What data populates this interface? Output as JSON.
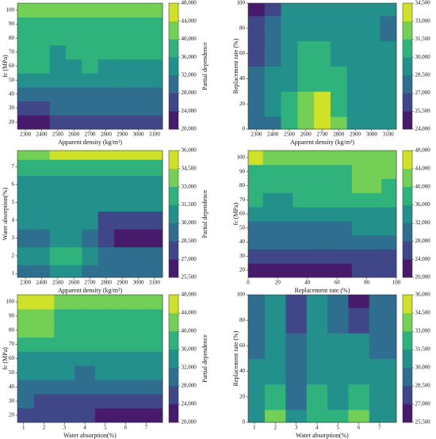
{
  "chart_data": [
    {
      "type": "contour",
      "colormap": "viridis",
      "x_label": "Apparent density (kg/m³)",
      "y_label": "fc (MPa)",
      "colorbar_label": "Partial dependence",
      "x": [
        2300,
        2400,
        2500,
        2600,
        2700,
        2800,
        2900,
        3000,
        3100
      ],
      "y": [
        20,
        30,
        40,
        50,
        60,
        70,
        80,
        90,
        100
      ],
      "z": [
        [
          22000,
          23000,
          25000,
          25000,
          25000,
          25000,
          26000,
          26000,
          26000
        ],
        [
          26000,
          27000,
          28000,
          28000,
          28000,
          28000,
          28000,
          29000,
          29000
        ],
        [
          30000,
          30000,
          30000,
          30000,
          30000,
          31000,
          31000,
          31000,
          31000
        ],
        [
          32000,
          33000,
          32000,
          32000,
          33000,
          33000,
          33000,
          33000,
          33000
        ],
        [
          36000,
          37000,
          35000,
          33000,
          36000,
          35000,
          35000,
          35000,
          35000
        ],
        [
          37000,
          38000,
          35000,
          37000,
          37000,
          37000,
          37000,
          37000,
          37000
        ],
        [
          38000,
          38000,
          38000,
          38000,
          38000,
          38000,
          38000,
          38000,
          38000
        ],
        [
          38000,
          38000,
          38000,
          38000,
          38000,
          38000,
          38000,
          38000,
          38000
        ],
        [
          41000,
          42000,
          42000,
          42000,
          42000,
          42000,
          42000,
          42000,
          42000
        ]
      ],
      "xlim": [
        2250,
        3150
      ],
      "ylim": [
        15,
        105
      ],
      "xticks": [
        2300,
        2400,
        2500,
        2600,
        2700,
        2800,
        2900,
        3000,
        3100
      ],
      "yticks": [
        20,
        30,
        40,
        50,
        60,
        70,
        80,
        90,
        100
      ],
      "clim": [
        20000,
        48000
      ],
      "cticks": [
        {
          "value": 20000,
          "label": "20,000"
        },
        {
          "value": 24000,
          "label": "24,000"
        },
        {
          "value": 28000,
          "label": "28,000"
        },
        {
          "value": 32000,
          "label": "32,000"
        },
        {
          "value": 36000,
          "label": "36,000"
        },
        {
          "value": 40000,
          "label": "40,000"
        },
        {
          "value": 44000,
          "label": "44,000"
        },
        {
          "value": 48000,
          "label": "48,000"
        }
      ]
    },
    {
      "type": "contour",
      "colormap": "viridis",
      "x_label": "Apparent density (kg/m³)",
      "y_label": "Replacement rate (%)",
      "colorbar_label": "Partial dependence",
      "x": [
        2300,
        2400,
        2500,
        2600,
        2700,
        2800,
        2900,
        3000,
        3100
      ],
      "y": [
        0,
        20,
        40,
        60,
        80,
        100
      ],
      "z": [
        [
          27000,
          28000,
          30000,
          32000,
          34000,
          31500,
          29000,
          28500,
          28500
        ],
        [
          27500,
          28500,
          30000,
          31500,
          33000,
          31000,
          29000,
          28500,
          28500
        ],
        [
          27000,
          28500,
          29500,
          30500,
          31000,
          30000,
          29000,
          28500,
          28500
        ],
        [
          26500,
          28000,
          29000,
          30000,
          30000,
          29500,
          29000,
          28500,
          28500
        ],
        [
          26000,
          27500,
          28500,
          29000,
          29000,
          29000,
          28500,
          28500,
          28000
        ],
        [
          25000,
          26500,
          28500,
          29000,
          29000,
          29000,
          28500,
          28500,
          28500
        ]
      ],
      "xlim": [
        2250,
        3150
      ],
      "ylim": [
        0,
        100
      ],
      "xticks": [
        2300,
        2400,
        2500,
        2600,
        2700,
        2800,
        2900,
        3000,
        3100
      ],
      "yticks": [
        0,
        20,
        40,
        60,
        80,
        100
      ],
      "clim": [
        24000,
        34500
      ],
      "cticks": [
        {
          "value": 24000,
          "label": "24,000"
        },
        {
          "value": 25500,
          "label": "25,500"
        },
        {
          "value": 27000,
          "label": "27,000"
        },
        {
          "value": 28500,
          "label": "28,500"
        },
        {
          "value": 30000,
          "label": "30,000"
        },
        {
          "value": 31500,
          "label": "31,500"
        },
        {
          "value": 33000,
          "label": "33,000"
        },
        {
          "value": 34500,
          "label": "34,500"
        }
      ]
    },
    {
      "type": "contour",
      "colormap": "viridis",
      "x_label": "Apparent density (kg/m³)",
      "y_label": "Water absorption(%)",
      "colorbar_label": "Partial dependence",
      "x": [
        2300,
        2400,
        2500,
        2600,
        2700,
        2800,
        2900,
        3000,
        3100
      ],
      "y": [
        1,
        2,
        3,
        4,
        5,
        6,
        7,
        7.8
      ],
      "z": [
        [
          29000,
          29500,
          30000,
          30000,
          29000,
          29000,
          29000,
          29000,
          29000
        ],
        [
          30000,
          30500,
          31500,
          32500,
          30000,
          28500,
          28500,
          28500,
          28500
        ],
        [
          29500,
          28500,
          30000,
          30500,
          29000,
          27000,
          26500,
          26500,
          26500
        ],
        [
          30000,
          30000,
          31000,
          31000,
          30000,
          28000,
          28000,
          28000,
          28000
        ],
        [
          30500,
          30500,
          31000,
          31000,
          30500,
          30000,
          30000,
          30000,
          30000
        ],
        [
          30500,
          30500,
          31000,
          31000,
          30500,
          30500,
          30500,
          30500,
          30500
        ],
        [
          31500,
          31500,
          31500,
          32000,
          32000,
          32000,
          32000,
          32000,
          32000
        ],
        [
          34000,
          34000,
          34500,
          35000,
          35500,
          35500,
          35500,
          35500,
          35500
        ]
      ],
      "xlim": [
        2250,
        3150
      ],
      "ylim": [
        0.8,
        7.9
      ],
      "xticks": [
        2300,
        2400,
        2500,
        2600,
        2700,
        2800,
        2900,
        3000,
        3100
      ],
      "yticks": [
        1,
        2,
        3,
        4,
        5,
        6,
        7
      ],
      "clim": [
        25500,
        36000
      ],
      "cticks": [
        {
          "value": 25500,
          "label": "25,500"
        },
        {
          "value": 27000,
          "label": "27,000"
        },
        {
          "value": 28500,
          "label": "28,500"
        },
        {
          "value": 30000,
          "label": "30,000"
        },
        {
          "value": 31500,
          "label": "31,500"
        },
        {
          "value": 33000,
          "label": "33,000"
        },
        {
          "value": 34500,
          "label": "34,500"
        },
        {
          "value": 36000,
          "label": "36,000"
        }
      ]
    },
    {
      "type": "contour",
      "colormap": "viridis",
      "x_label": "Replacement rate (%)",
      "y_label": "fc (MPa)",
      "colorbar_label": "Partial dependence",
      "x": [
        0,
        20,
        40,
        60,
        80,
        100
      ],
      "y": [
        20,
        30,
        40,
        50,
        60,
        70,
        80,
        90,
        100
      ],
      "z": [
        [
          22000,
          22000,
          23000,
          23000,
          24000,
          24000
        ],
        [
          26000,
          26000,
          26000,
          26000,
          27000,
          27000
        ],
        [
          29000,
          29000,
          29000,
          29000,
          30000,
          30000
        ],
        [
          31000,
          31000,
          31000,
          31000,
          32000,
          32000
        ],
        [
          34000,
          33000,
          34000,
          35000,
          35000,
          35000
        ],
        [
          36000,
          35000,
          36000,
          37000,
          38000,
          37000
        ],
        [
          38000,
          37000,
          37000,
          38000,
          40000,
          38000
        ],
        [
          39000,
          38000,
          38000,
          39000,
          40000,
          40000
        ],
        [
          45000,
          42000,
          41000,
          41000,
          41000,
          41000
        ]
      ],
      "xlim": [
        0,
        100
      ],
      "ylim": [
        15,
        105
      ],
      "xticks": [
        0,
        20,
        40,
        60,
        80,
        100
      ],
      "yticks": [
        20,
        30,
        40,
        50,
        60,
        70,
        80,
        90,
        100
      ],
      "clim": [
        20000,
        48000
      ],
      "cticks": [
        {
          "value": 20000,
          "label": "20,000"
        },
        {
          "value": 24000,
          "label": "24,000"
        },
        {
          "value": 28000,
          "label": "28,000"
        },
        {
          "value": 32000,
          "label": "32,000"
        },
        {
          "value": 36000,
          "label": "36,000"
        },
        {
          "value": 40000,
          "label": "40,000"
        },
        {
          "value": 44000,
          "label": "44,000"
        },
        {
          "value": 48000,
          "label": "48,000"
        }
      ]
    },
    {
      "type": "contour",
      "colormap": "viridis",
      "x_label": "Water absorption(%)",
      "y_label": "fc (MPa)",
      "colorbar_label": "Partial dependence",
      "x": [
        1,
        2,
        3,
        4,
        5,
        6,
        7
      ],
      "y": [
        20,
        30,
        40,
        50,
        60,
        70,
        80,
        90,
        100
      ],
      "z": [
        [
          26000,
          25000,
          26000,
          24000,
          22000,
          21000,
          22000
        ],
        [
          28000,
          27000,
          27000,
          26000,
          25000,
          25000,
          25000
        ],
        [
          30000,
          30000,
          30000,
          29000,
          29000,
          29000,
          29000
        ],
        [
          32000,
          32000,
          32000,
          31000,
          32000,
          32000,
          32000
        ],
        [
          34000,
          34000,
          35000,
          33000,
          34000,
          34000,
          34000
        ],
        [
          36000,
          37000,
          36000,
          36000,
          37000,
          37000,
          37000
        ],
        [
          40000,
          42000,
          37000,
          38000,
          38000,
          38000,
          38000
        ],
        [
          42000,
          43000,
          38000,
          38000,
          38000,
          38000,
          38000
        ],
        [
          44000,
          46000,
          42000,
          40000,
          40000,
          40000,
          40000
        ]
      ],
      "xlim": [
        0.7,
        7.8
      ],
      "ylim": [
        15,
        105
      ],
      "xticks": [
        1,
        2,
        3,
        4,
        5,
        6,
        7
      ],
      "yticks": [
        20,
        30,
        40,
        50,
        60,
        70,
        80,
        90,
        100
      ],
      "clim": [
        20000,
        48000
      ],
      "cticks": [
        {
          "value": 20000,
          "label": "20,000"
        },
        {
          "value": 24000,
          "label": "24,000"
        },
        {
          "value": 28000,
          "label": "28,000"
        },
        {
          "value": 32000,
          "label": "32,000"
        },
        {
          "value": 36000,
          "label": "36,000"
        },
        {
          "value": 40000,
          "label": "40,000"
        },
        {
          "value": 44000,
          "label": "44,000"
        },
        {
          "value": 48000,
          "label": "48,000"
        }
      ]
    },
    {
      "type": "contour",
      "colormap": "viridis",
      "x_label": "Water absorption(%)",
      "y_label": "Replacement rate (%)",
      "colorbar_label": "Partial dependence",
      "x": [
        1,
        2,
        3,
        4,
        5,
        6,
        7
      ],
      "y": [
        0,
        20,
        40,
        60,
        80,
        100
      ],
      "z": [
        [
          31000,
          33000,
          30000,
          32000,
          31500,
          33000,
          31000
        ],
        [
          30500,
          32000,
          29500,
          31500,
          31000,
          32000,
          30500
        ],
        [
          30000,
          31000,
          29000,
          31000,
          30500,
          31000,
          30000
        ],
        [
          29500,
          30500,
          28500,
          30500,
          30000,
          30000,
          29500
        ],
        [
          29000,
          30000,
          28000,
          30000,
          29500,
          27000,
          29500
        ],
        [
          28500,
          30000,
          27500,
          30000,
          29000,
          26500,
          29000
        ]
      ],
      "xlim": [
        0.7,
        7.8
      ],
      "ylim": [
        0,
        100
      ],
      "xticks": [
        1,
        2,
        3,
        4,
        5,
        6,
        7
      ],
      "yticks": [
        0,
        20,
        40,
        60,
        80,
        100
      ],
      "clim": [
        25500,
        36000
      ],
      "cticks": [
        {
          "value": 25500,
          "label": "25,500"
        },
        {
          "value": 27000,
          "label": "27,000"
        },
        {
          "value": 28500,
          "label": "28,500"
        },
        {
          "value": 30000,
          "label": "30,000"
        },
        {
          "value": 31500,
          "label": "31,500"
        },
        {
          "value": 33000,
          "label": "33,000"
        },
        {
          "value": 34500,
          "label": "34,500"
        },
        {
          "value": 36000,
          "label": "36,000"
        }
      ]
    }
  ]
}
